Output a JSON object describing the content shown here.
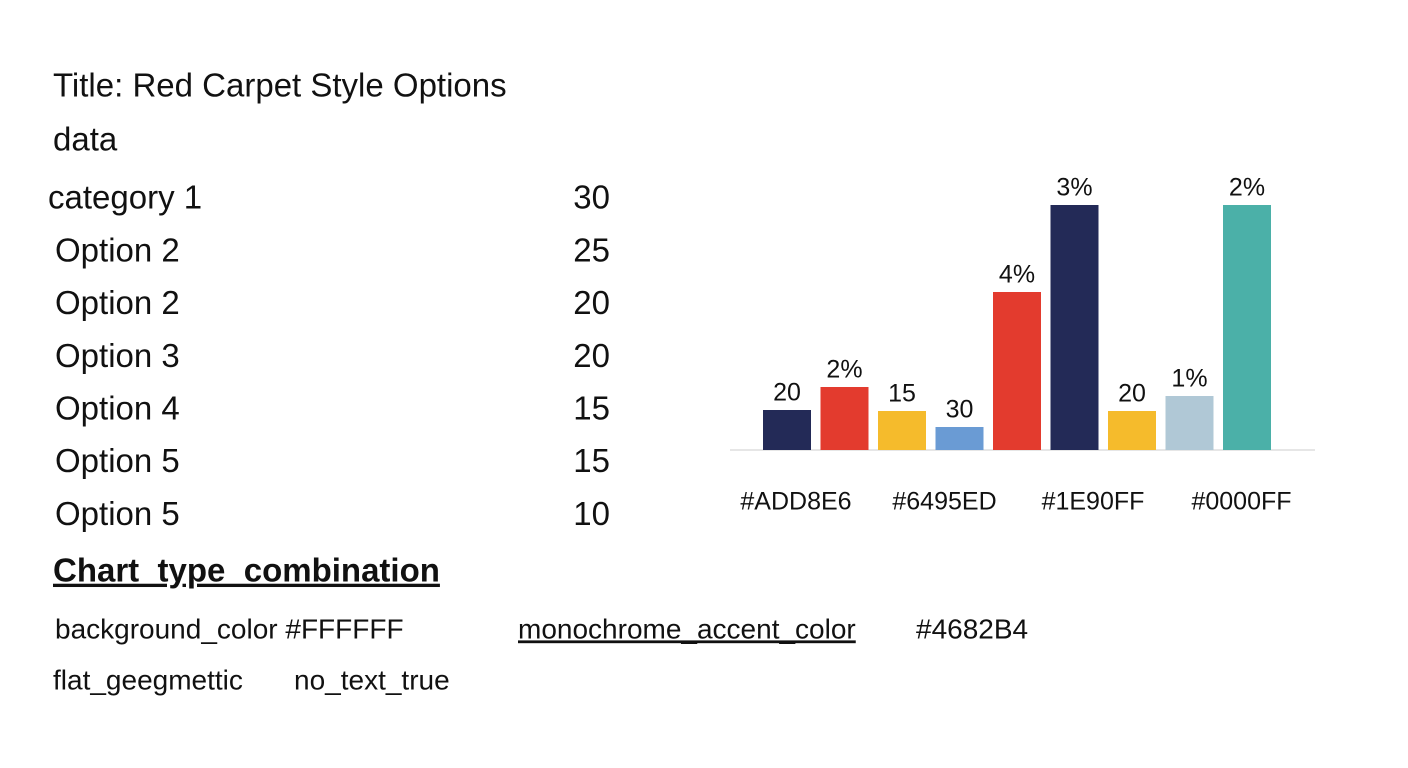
{
  "header": {
    "title": "Title: Red Carpet Style Options",
    "subtitle": "data"
  },
  "table": {
    "rows": [
      [
        "category 1",
        30
      ],
      [
        "Option 2",
        25
      ],
      [
        "Option 2",
        20
      ],
      [
        "Option 3",
        20
      ],
      [
        "Option 4",
        15
      ],
      [
        "Option 5",
        15
      ],
      [
        "Option 5",
        10
      ]
    ]
  },
  "section": {
    "heading": "Chart_type_combination",
    "notes": [
      "background_color #FFFFFF",
      "monochrome_accent_color",
      "#4682B4",
      "flat_geegmettic",
      "no_text_true"
    ]
  },
  "chart_data": {
    "type": "bar",
    "values": [
      40,
      63,
      39,
      23,
      158,
      245,
      39,
      54,
      245
    ],
    "colors": [
      "#232a57",
      "#e33b2e",
      "#f5bb2c",
      "#6a9bd4",
      "#e33b2e",
      "#232a57",
      "#f5bb2c",
      "#b0c8d6",
      "#4bb0a8"
    ],
    "annotations": [
      "20",
      "2%",
      "15",
      "30",
      "4%",
      "3%",
      "20",
      "1%",
      "2%"
    ],
    "axis_labels": [
      "#ADD8E6",
      "#6495ED",
      "#1E90FF",
      "#0000FF"
    ]
  }
}
